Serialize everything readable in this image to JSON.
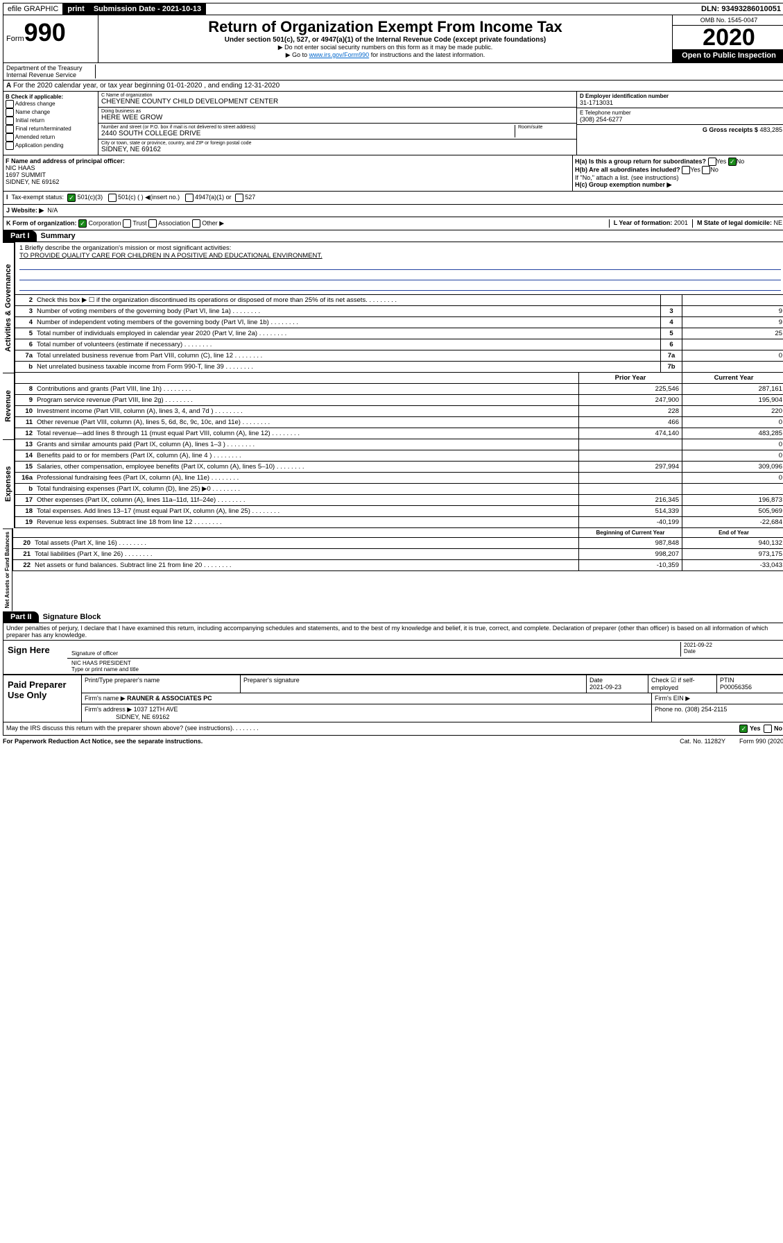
{
  "top": {
    "efile": "efile GRAPHIC",
    "print": "print",
    "sub_label": "Submission Date - 2021-10-13",
    "dln": "DLN: 93493286010051"
  },
  "header": {
    "form_word": "Form",
    "form_num": "990",
    "title": "Return of Organization Exempt From Income Tax",
    "subtitle": "Under section 501(c), 527, or 4947(a)(1) of the Internal Revenue Code (except private foundations)",
    "note1": "▶ Do not enter social security numbers on this form as it may be made public.",
    "note2_pre": "▶ Go to ",
    "note2_link": "www.irs.gov/Form990",
    "note2_post": " for instructions and the latest information.",
    "omb": "OMB No. 1545-0047",
    "year": "2020",
    "open": "Open to Public Inspection",
    "dept": "Department of the Treasury",
    "irs": "Internal Revenue Service"
  },
  "a_line": "For the 2020 calendar year, or tax year beginning 01-01-2020    , and ending 12-31-2020",
  "b": {
    "label": "B Check if applicable:",
    "items": [
      "Address change",
      "Name change",
      "Initial return",
      "Final return/terminated",
      "Amended return",
      "Application pending"
    ]
  },
  "c": {
    "name_lbl": "C Name of organization",
    "name": "CHEYENNE COUNTY CHILD DEVELOPMENT CENTER",
    "dba_lbl": "Doing business as",
    "dba": "HERE WEE GROW",
    "addr_lbl": "Number and street (or P.O. box if mail is not delivered to street address)",
    "addr": "2440 SOUTH COLLEGE DRIVE",
    "room_lbl": "Room/suite",
    "city_lbl": "City or town, state or province, country, and ZIP or foreign postal code",
    "city": "SIDNEY, NE  69162"
  },
  "d": {
    "ein_lbl": "D Employer identification number",
    "ein": "31-1713031",
    "tel_lbl": "E Telephone number",
    "tel": "(308) 254-6277",
    "gross_lbl": "G Gross receipts $",
    "gross": "483,285"
  },
  "f": {
    "lbl": "F  Name and address of principal officer:",
    "name": "NIC HAAS",
    "addr1": "1697 SUMMIT",
    "addr2": "SIDNEY, NE  69162"
  },
  "h": {
    "a": "H(a)  Is this a group return for subordinates?",
    "b": "H(b)  Are all subordinates included?",
    "note": "If \"No,\" attach a list. (see instructions)",
    "c": "H(c)  Group exemption number ▶",
    "yes": "Yes",
    "no": "No"
  },
  "i": {
    "lbl": "Tax-exempt status:",
    "opts": [
      "501(c)(3)",
      "501(c) (   ) ◀(insert no.)",
      "4947(a)(1) or",
      "527"
    ]
  },
  "j": {
    "lbl": "J    Website: ▶",
    "val": "N/A"
  },
  "k": {
    "lbl": "K Form of organization:",
    "opts": [
      "Corporation",
      "Trust",
      "Association",
      "Other ▶"
    ],
    "l_lbl": "L Year of formation:",
    "l_val": "2001",
    "m_lbl": "M State of legal domicile:",
    "m_val": "NE"
  },
  "part1": {
    "tab": "Part I",
    "title": "Summary"
  },
  "mission": {
    "q": "1  Briefly describe the organization's mission or most significant activities:",
    "a": "TO PROVIDE QUALITY CARE FOR CHILDREN IN A POSITIVE AND EDUCATIONAL ENVIRONMENT."
  },
  "gov_section": "Activities & Governance",
  "rev_section": "Revenue",
  "exp_section": "Expenses",
  "net_section": "Net Assets or Fund Balances",
  "lines_gov": [
    {
      "n": "2",
      "t": "Check this box ▶ ☐  if the organization discontinued its operations or disposed of more than 25% of its net assets.",
      "box": "",
      "v": ""
    },
    {
      "n": "3",
      "t": "Number of voting members of the governing body (Part VI, line 1a)",
      "box": "3",
      "v": "9"
    },
    {
      "n": "4",
      "t": "Number of independent voting members of the governing body (Part VI, line 1b)",
      "box": "4",
      "v": "9"
    },
    {
      "n": "5",
      "t": "Total number of individuals employed in calendar year 2020 (Part V, line 2a)",
      "box": "5",
      "v": "25"
    },
    {
      "n": "6",
      "t": "Total number of volunteers (estimate if necessary)",
      "box": "6",
      "v": ""
    },
    {
      "n": "7a",
      "t": "Total unrelated business revenue from Part VIII, column (C), line 12",
      "box": "7a",
      "v": "0"
    },
    {
      "n": "b",
      "t": "Net unrelated business taxable income from Form 990-T, line 39",
      "box": "7b",
      "v": ""
    }
  ],
  "th_rev": {
    "py": "Prior Year",
    "cy": "Current Year"
  },
  "lines_rev": [
    {
      "n": "8",
      "t": "Contributions and grants (Part VIII, line 1h)",
      "py": "225,546",
      "cy": "287,161"
    },
    {
      "n": "9",
      "t": "Program service revenue (Part VIII, line 2g)",
      "py": "247,900",
      "cy": "195,904"
    },
    {
      "n": "10",
      "t": "Investment income (Part VIII, column (A), lines 3, 4, and 7d )",
      "py": "228",
      "cy": "220"
    },
    {
      "n": "11",
      "t": "Other revenue (Part VIII, column (A), lines 5, 6d, 8c, 9c, 10c, and 11e)",
      "py": "466",
      "cy": "0"
    },
    {
      "n": "12",
      "t": "Total revenue—add lines 8 through 11 (must equal Part VIII, column (A), line 12)",
      "py": "474,140",
      "cy": "483,285"
    }
  ],
  "lines_exp": [
    {
      "n": "13",
      "t": "Grants and similar amounts paid (Part IX, column (A), lines 1–3 )",
      "py": "",
      "cy": "0"
    },
    {
      "n": "14",
      "t": "Benefits paid to or for members (Part IX, column (A), line 4 )",
      "py": "",
      "cy": "0"
    },
    {
      "n": "15",
      "t": "Salaries, other compensation, employee benefits (Part IX, column (A), lines 5–10)",
      "py": "297,994",
      "cy": "309,096"
    },
    {
      "n": "16a",
      "t": "Professional fundraising fees (Part IX, column (A), line 11e)",
      "py": "",
      "cy": "0"
    },
    {
      "n": "b",
      "t": "Total fundraising expenses (Part IX, column (D), line 25) ▶0",
      "py": "",
      "cy": ""
    },
    {
      "n": "17",
      "t": "Other expenses (Part IX, column (A), lines 11a–11d, 11f–24e)",
      "py": "216,345",
      "cy": "196,873"
    },
    {
      "n": "18",
      "t": "Total expenses. Add lines 13–17 (must equal Part IX, column (A), line 25)",
      "py": "514,339",
      "cy": "505,969"
    },
    {
      "n": "19",
      "t": "Revenue less expenses. Subtract line 18 from line 12",
      "py": "-40,199",
      "cy": "-22,684"
    }
  ],
  "th_net": {
    "py": "Beginning of Current Year",
    "cy": "End of Year"
  },
  "lines_net": [
    {
      "n": "20",
      "t": "Total assets (Part X, line 16)",
      "py": "987,848",
      "cy": "940,132"
    },
    {
      "n": "21",
      "t": "Total liabilities (Part X, line 26)",
      "py": "998,207",
      "cy": "973,175"
    },
    {
      "n": "22",
      "t": "Net assets or fund balances. Subtract line 21 from line 20",
      "py": "-10,359",
      "cy": "-33,043"
    }
  ],
  "part2": {
    "tab": "Part II",
    "title": "Signature Block"
  },
  "perjury": "Under penalties of perjury, I declare that I have examined this return, including accompanying schedules and statements, and to the best of my knowledge and belief, it is true, correct, and complete. Declaration of preparer (other than officer) is based on all information of which preparer has any knowledge.",
  "sign": {
    "here": "Sign Here",
    "sig_lbl": "Signature of officer",
    "date": "2021-09-22",
    "date_lbl": "Date",
    "name": "NIC HAAS PRESIDENT",
    "name_lbl": "Type or print name and title"
  },
  "paid": {
    "title": "Paid Preparer Use Only",
    "h1": "Print/Type preparer's name",
    "h2": "Preparer's signature",
    "h3": "Date",
    "h3v": "2021-09-23",
    "h4": "Check ☑ if self-employed",
    "h5": "PTIN",
    "h5v": "P00056356",
    "firm_lbl": "Firm's name    ▶",
    "firm": "RAUNER & ASSOCIATES PC",
    "ein_lbl": "Firm's EIN ▶",
    "addr_lbl": "Firm's address ▶",
    "addr": "1037 12TH AVE",
    "addr2": "SIDNEY, NE  69162",
    "phone_lbl": "Phone no.",
    "phone": "(308) 254-2115"
  },
  "discuss": "May the IRS discuss this return with the preparer shown above? (see instructions)",
  "footer": {
    "left": "For Paperwork Reduction Act Notice, see the separate instructions.",
    "mid": "Cat. No. 11282Y",
    "right": "Form 990 (2020)"
  }
}
